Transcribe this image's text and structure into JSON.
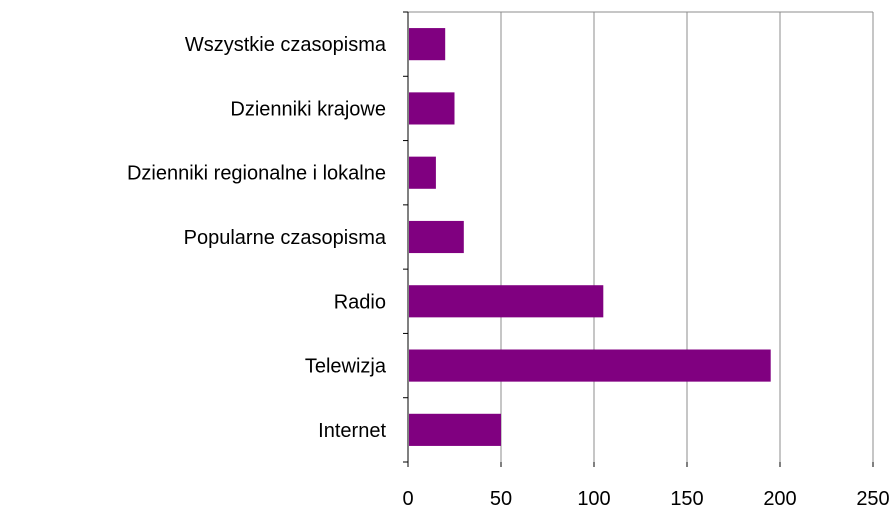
{
  "chart_data": {
    "type": "bar",
    "orientation": "horizontal",
    "categories": [
      "Wszystkie czasopisma",
      "Dzienniki krajowe",
      "Dzienniki regionalne i lokalne",
      "Popularne czasopisma",
      "Radio",
      "Telewizja",
      "Internet"
    ],
    "values": [
      20,
      25,
      15,
      30,
      105,
      195,
      50
    ],
    "xlim": [
      0,
      250
    ],
    "xticks": [
      "0",
      "50",
      "100",
      "150",
      "200",
      "250"
    ],
    "grid": "vertical",
    "bar_color": "#800080"
  }
}
